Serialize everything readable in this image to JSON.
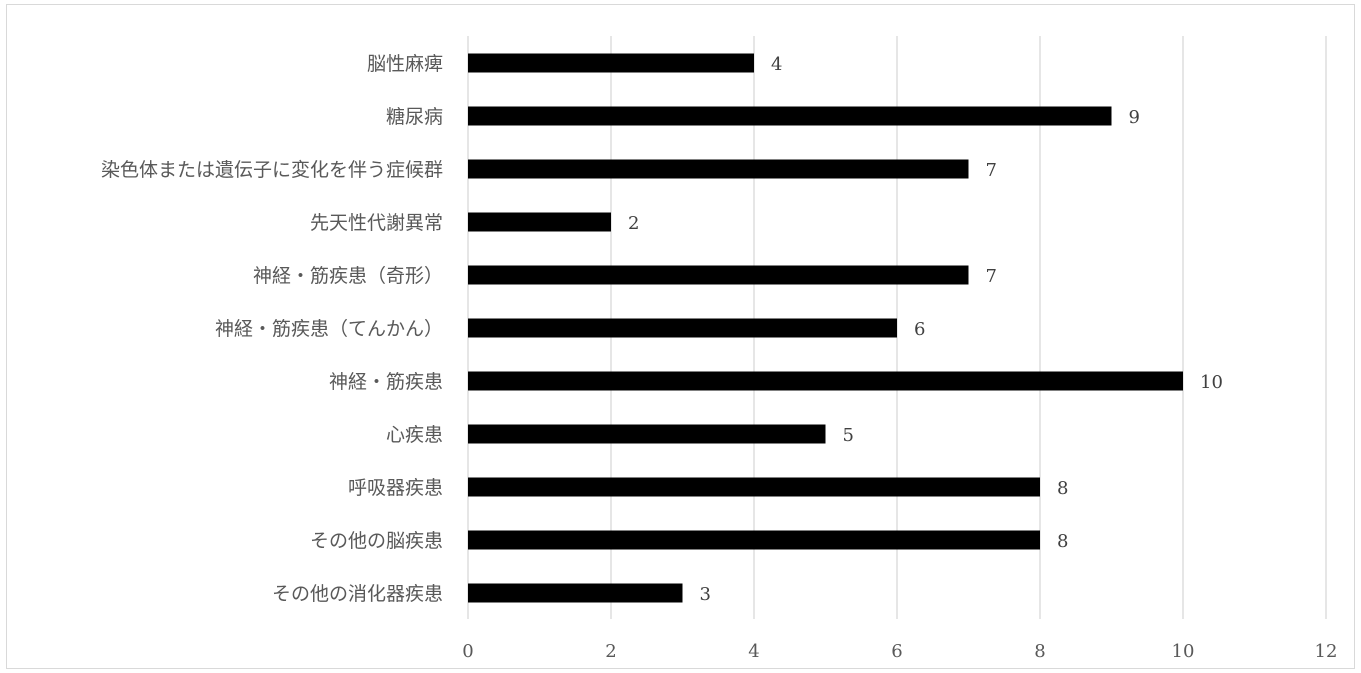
{
  "chart_data": {
    "type": "bar",
    "orientation": "horizontal",
    "categories": [
      "脳性麻痺",
      "糖尿病",
      "染色体または遺伝子に変化を伴う症候群",
      "先天性代謝異常",
      "神経・筋疾患（奇形）",
      "神経・筋疾患（てんかん）",
      "神経・筋疾患",
      "心疾患",
      "呼吸器疾患",
      "その他の脳疾患",
      "その他の消化器疾患"
    ],
    "values": [
      4,
      9,
      7,
      2,
      7,
      6,
      10,
      5,
      8,
      8,
      3
    ],
    "x_ticks": [
      "0",
      "2",
      "4",
      "6",
      "8",
      "10",
      "12"
    ],
    "xlim": [
      0,
      12
    ],
    "title": "",
    "xlabel": "",
    "ylabel": "",
    "grid": "vertical",
    "legend": "none",
    "data_labels": true,
    "bar_color": "#000000",
    "grid_color": "#d9d9d9"
  }
}
